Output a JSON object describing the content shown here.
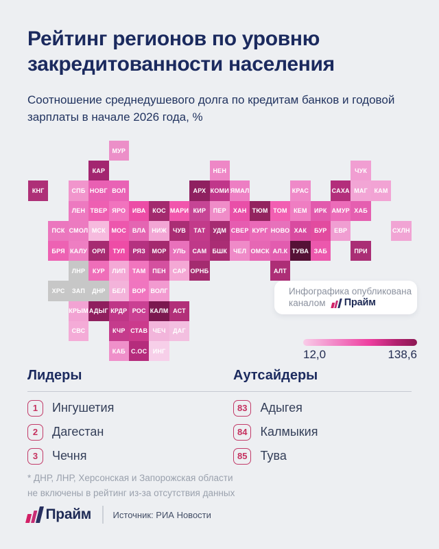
{
  "header": {
    "title": "Рейтинг регионов по уровню закредитованности населения",
    "subtitle": "Соотношение среднедушевого долга по кредитам банков и годовой зарплаты в начале 2026 года, %"
  },
  "publisher_card": {
    "line1": "Инфографика опубликована",
    "line2": "каналом",
    "brand": "Прайм"
  },
  "legend": {
    "min_label": "12,0",
    "max_label": "138,6"
  },
  "sections": {
    "leaders_heading": "Лидеры",
    "outsiders_heading": "Аутсайдеры"
  },
  "footnote": "* ДНР, ЛНР, Херсонская и Запорожская области\nне включены в рейтинг из-за отсутствия данных",
  "footer": {
    "brand": "Прайм",
    "source": "Источник: РИА Новости"
  },
  "chart_data": {
    "type": "choropleth_tile_map",
    "title": "Рейтинг регионов по уровню закредитованности населения",
    "value_definition": "Соотношение среднедушевого долга по кредитам банков и годовой зарплаты в начале 2026 года, %",
    "scale": {
      "min": 12.0,
      "max": 138.6,
      "min_label": "12,0",
      "max_label": "138,6",
      "gradient": [
        "#f9cce8",
        "#ee3fa0",
        "#8c1853"
      ],
      "excluded_color": "#c7c7c7"
    },
    "leaders": [
      {
        "rank": "1",
        "name": "Ингушетия"
      },
      {
        "rank": "2",
        "name": "Дагестан"
      },
      {
        "rank": "3",
        "name": "Чечня"
      }
    ],
    "outsiders": [
      {
        "rank": "83",
        "name": "Адыгея"
      },
      {
        "rank": "84",
        "name": "Калмыкия"
      },
      {
        "rank": "85",
        "name": "Тува"
      }
    ],
    "note": "* ДНР, ЛНР, Херсонская и Запорожская области не включены в рейтинг из-за отсутствия данных",
    "source": "Источник: РИА Новости",
    "regions": [
      {
        "label": "МУР",
        "col": 4,
        "row": 0,
        "color": "#ec8fc8"
      },
      {
        "label": "КАР",
        "col": 3,
        "row": 1,
        "color": "#a32570"
      },
      {
        "label": "НЕН",
        "col": 9,
        "row": 1,
        "color": "#ee87c6"
      },
      {
        "label": "ЧУК",
        "col": 16,
        "row": 1,
        "color": "#f19ed2"
      },
      {
        "label": "КНГ",
        "col": 0,
        "row": 2,
        "color": "#ae3077"
      },
      {
        "label": "СПБ",
        "col": 2,
        "row": 2,
        "color": "#f195cc"
      },
      {
        "label": "НОВГ",
        "col": 3,
        "row": 2,
        "color": "#e960b3"
      },
      {
        "label": "ВОЛ",
        "col": 4,
        "row": 2,
        "color": "#e962b5"
      },
      {
        "label": "АРХ",
        "col": 8,
        "row": 2,
        "color": "#8f2060"
      },
      {
        "label": "КОМИ",
        "col": 9,
        "row": 2,
        "color": "#c0368a"
      },
      {
        "label": "ЯМАЛ",
        "col": 10,
        "row": 2,
        "color": "#ed7ec3"
      },
      {
        "label": "КРАС",
        "col": 13,
        "row": 2,
        "color": "#ef89c8"
      },
      {
        "label": "САХА",
        "col": 15,
        "row": 2,
        "color": "#b32e7b"
      },
      {
        "label": "МАГ",
        "col": 16,
        "row": 2,
        "color": "#f2a5d5"
      },
      {
        "label": "КАМ",
        "col": 17,
        "row": 2,
        "color": "#f2a3d4"
      },
      {
        "label": "ЛЕН",
        "col": 2,
        "row": 3,
        "color": "#ed79c0"
      },
      {
        "label": "ТВЕР",
        "col": 3,
        "row": 3,
        "color": "#ee5fb2"
      },
      {
        "label": "ЯРО",
        "col": 4,
        "row": 3,
        "color": "#f173be"
      },
      {
        "label": "ИВА",
        "col": 5,
        "row": 3,
        "color": "#ec4ca6"
      },
      {
        "label": "КОС",
        "col": 6,
        "row": 3,
        "color": "#a32a6e"
      },
      {
        "label": "МАРИ",
        "col": 7,
        "row": 3,
        "color": "#f155ac"
      },
      {
        "label": "КИР",
        "col": 8,
        "row": 3,
        "color": "#c64595"
      },
      {
        "label": "ПЕР",
        "col": 9,
        "row": 3,
        "color": "#ef8cc8"
      },
      {
        "label": "ХАН",
        "col": 10,
        "row": 3,
        "color": "#e94fa8"
      },
      {
        "label": "ТЮМ",
        "col": 11,
        "row": 3,
        "color": "#93245f"
      },
      {
        "label": "ТОМ",
        "col": 12,
        "row": 3,
        "color": "#f25fb2"
      },
      {
        "label": "КЕМ",
        "col": 13,
        "row": 3,
        "color": "#ef7dc2"
      },
      {
        "label": "ИРК",
        "col": 14,
        "row": 3,
        "color": "#e25aad"
      },
      {
        "label": "АМУР",
        "col": 15,
        "row": 3,
        "color": "#ec6cb9"
      },
      {
        "label": "ХАБ",
        "col": 16,
        "row": 3,
        "color": "#e55fb0"
      },
      {
        "label": "ПСК",
        "col": 1,
        "row": 4,
        "color": "#eb77be"
      },
      {
        "label": "СМОЛ",
        "col": 2,
        "row": 4,
        "color": "#ec7ac0"
      },
      {
        "label": "МСК",
        "col": 3,
        "row": 4,
        "color": "#f6bade"
      },
      {
        "label": "МОС",
        "col": 4,
        "row": 4,
        "color": "#ed57ad"
      },
      {
        "label": "ВЛА",
        "col": 5,
        "row": 4,
        "color": "#e465b2"
      },
      {
        "label": "НИЖ",
        "col": 6,
        "row": 4,
        "color": "#f2a5d4"
      },
      {
        "label": "ЧУВ",
        "col": 7,
        "row": 4,
        "color": "#aa2d74"
      },
      {
        "label": "ТАТ",
        "col": 8,
        "row": 4,
        "color": "#c23a8a"
      },
      {
        "label": "УДМ",
        "col": 9,
        "row": 4,
        "color": "#a62c72"
      },
      {
        "label": "СВЕР",
        "col": 10,
        "row": 4,
        "color": "#e65cb0"
      },
      {
        "label": "КУРГ",
        "col": 11,
        "row": 4,
        "color": "#ea6ab8"
      },
      {
        "label": "НОВО",
        "col": 12,
        "row": 4,
        "color": "#e771bb"
      },
      {
        "label": "ХАК",
        "col": 13,
        "row": 4,
        "color": "#d94ba0"
      },
      {
        "label": "БУР",
        "col": 14,
        "row": 4,
        "color": "#e24b9f"
      },
      {
        "label": "ЕВР",
        "col": 15,
        "row": 4,
        "color": "#f09ed2"
      },
      {
        "label": "СХЛН",
        "col": 18,
        "row": 4,
        "color": "#f1a4d4"
      },
      {
        "label": "БРЯ",
        "col": 1,
        "row": 5,
        "color": "#ed62b3"
      },
      {
        "label": "КАЛУ",
        "col": 2,
        "row": 5,
        "color": "#ee7ec2"
      },
      {
        "label": "ОРЛ",
        "col": 3,
        "row": 5,
        "color": "#a62b71"
      },
      {
        "label": "ТУЛ",
        "col": 4,
        "row": 5,
        "color": "#ee4ca6"
      },
      {
        "label": "РЯЗ",
        "col": 5,
        "row": 5,
        "color": "#b53180"
      },
      {
        "label": "МОР",
        "col": 6,
        "row": 5,
        "color": "#a42a6e"
      },
      {
        "label": "УЛЬ",
        "col": 7,
        "row": 5,
        "color": "#e971bb"
      },
      {
        "label": "САМ",
        "col": 8,
        "row": 5,
        "color": "#bf3989"
      },
      {
        "label": "БШК",
        "col": 9,
        "row": 5,
        "color": "#aa2d74"
      },
      {
        "label": "ЧЕЛ",
        "col": 10,
        "row": 5,
        "color": "#ef8ac8"
      },
      {
        "label": "ОМСК",
        "col": 11,
        "row": 5,
        "color": "#e667b4"
      },
      {
        "label": "АЛ.К",
        "col": 12,
        "row": 5,
        "color": "#e25caf"
      },
      {
        "label": "ТУВА",
        "col": 13,
        "row": 5,
        "color": "#551136"
      },
      {
        "label": "ЗАБ",
        "col": 14,
        "row": 5,
        "color": "#ec58ad"
      },
      {
        "label": "ПРИ",
        "col": 16,
        "row": 5,
        "color": "#aa2e75"
      },
      {
        "label": "ЛНР",
        "col": 2,
        "row": 6,
        "color": "#c7c7c7",
        "excluded": true
      },
      {
        "label": "КУР",
        "col": 3,
        "row": 6,
        "color": "#ef6eb9"
      },
      {
        "label": "ЛИП",
        "col": 4,
        "row": 6,
        "color": "#f4a9d6"
      },
      {
        "label": "ТАМ",
        "col": 5,
        "row": 6,
        "color": "#f175be"
      },
      {
        "label": "ПЕН",
        "col": 6,
        "row": 6,
        "color": "#d4509f"
      },
      {
        "label": "САР",
        "col": 7,
        "row": 6,
        "color": "#f4a8d5"
      },
      {
        "label": "ОРНБ",
        "col": 8,
        "row": 6,
        "color": "#a42b6f"
      },
      {
        "label": "АЛТ",
        "col": 12,
        "row": 6,
        "color": "#ad2e76"
      },
      {
        "label": "ХРС",
        "col": 1,
        "row": 7,
        "color": "#c7c7c7",
        "excluded": true
      },
      {
        "label": "ЗАП",
        "col": 2,
        "row": 7,
        "color": "#c7c7c7",
        "excluded": true
      },
      {
        "label": "ДНР",
        "col": 3,
        "row": 7,
        "color": "#c7c7c7",
        "excluded": true
      },
      {
        "label": "БЕЛ",
        "col": 4,
        "row": 7,
        "color": "#f3b3da"
      },
      {
        "label": "ВОР",
        "col": 5,
        "row": 7,
        "color": "#f075bf"
      },
      {
        "label": "ВОЛГ",
        "col": 6,
        "row": 7,
        "color": "#f29ad0"
      },
      {
        "label": "КРЫМ",
        "col": 2,
        "row": 8,
        "color": "#f2a3d3"
      },
      {
        "label": "АДЫГ",
        "col": 3,
        "row": 8,
        "color": "#8f1f5e"
      },
      {
        "label": "КРДР",
        "col": 4,
        "row": 8,
        "color": "#bf3687"
      },
      {
        "label": "РОС",
        "col": 5,
        "row": 8,
        "color": "#ca4093"
      },
      {
        "label": "КАЛМ",
        "col": 6,
        "row": 8,
        "color": "#7b1850"
      },
      {
        "label": "АСТ",
        "col": 7,
        "row": 8,
        "color": "#b23079"
      },
      {
        "label": "СВС",
        "col": 2,
        "row": 9,
        "color": "#f4abd7"
      },
      {
        "label": "КЧР",
        "col": 4,
        "row": 9,
        "color": "#c53b8c"
      },
      {
        "label": "СТАВ",
        "col": 5,
        "row": 9,
        "color": "#cb3a8c"
      },
      {
        "label": "ЧЕЧ",
        "col": 6,
        "row": 9,
        "color": "#f2b5db"
      },
      {
        "label": "ДАГ",
        "col": 7,
        "row": 9,
        "color": "#f3bfe0"
      },
      {
        "label": "КАБ",
        "col": 4,
        "row": 10,
        "color": "#ef90ca"
      },
      {
        "label": "С.ОС",
        "col": 5,
        "row": 10,
        "color": "#b52c7c"
      },
      {
        "label": "ИНГ",
        "col": 6,
        "row": 10,
        "color": "#f7cfe9"
      }
    ]
  }
}
